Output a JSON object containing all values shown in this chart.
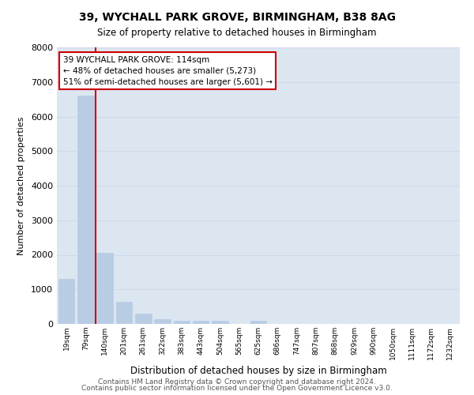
{
  "title_line1": "39, WYCHALL PARK GROVE, BIRMINGHAM, B38 8AG",
  "title_line2": "Size of property relative to detached houses in Birmingham",
  "xlabel": "Distribution of detached houses by size in Birmingham",
  "ylabel": "Number of detached properties",
  "bar_labels": [
    "19sqm",
    "79sqm",
    "140sqm",
    "201sqm",
    "261sqm",
    "322sqm",
    "383sqm",
    "443sqm",
    "504sqm",
    "565sqm",
    "625sqm",
    "686sqm",
    "747sqm",
    "807sqm",
    "868sqm",
    "929sqm",
    "990sqm",
    "1050sqm",
    "1111sqm",
    "1172sqm",
    "1232sqm"
  ],
  "bar_values": [
    1300,
    6600,
    2050,
    650,
    300,
    140,
    90,
    90,
    90,
    0,
    90,
    0,
    0,
    0,
    0,
    0,
    0,
    0,
    0,
    0,
    0
  ],
  "bar_color": "#b8cce4",
  "bar_edge_color": "#b8cce4",
  "grid_color": "#d0d8e8",
  "background_color": "#dce6f1",
  "ylim": [
    0,
    8000
  ],
  "yticks": [
    0,
    1000,
    2000,
    3000,
    4000,
    5000,
    6000,
    7000,
    8000
  ],
  "vline_x": 1.5,
  "vline_color": "#cc0000",
  "annotation_line1": "39 WYCHALL PARK GROVE: 114sqm",
  "annotation_line2": "← 48% of detached houses are smaller (5,273)",
  "annotation_line3": "51% of semi-detached houses are larger (5,601) →",
  "annotation_box_color": "#ffffff",
  "annotation_box_edge_color": "#cc0000",
  "footer_line1": "Contains HM Land Registry data © Crown copyright and database right 2024.",
  "footer_line2": "Contains public sector information licensed under the Open Government Licence v3.0."
}
